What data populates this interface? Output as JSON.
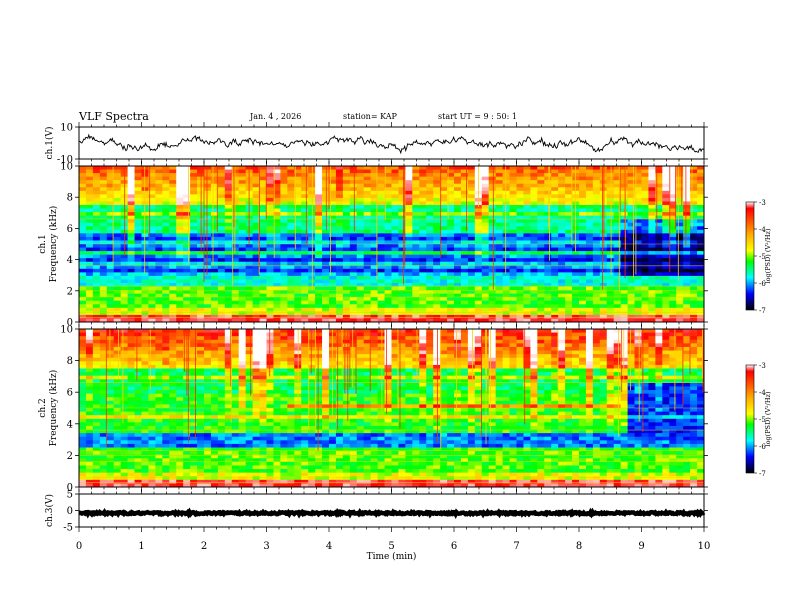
{
  "header": {
    "title": "VLF Spectra",
    "date": "Jan. 4 , 2026",
    "station": "station= KAP",
    "start_ut": "start  UT =  9 : 50: 1"
  },
  "chart_data": [
    {
      "type": "line",
      "name": "ch1-waveform",
      "ylabel": "ch.1(V)",
      "ylim": [
        -10,
        10
      ],
      "ytick_labels": [
        "10",
        "-10"
      ],
      "xlim": [
        0,
        10
      ],
      "mean_level": 0,
      "amplitude": 5,
      "points": 640
    },
    {
      "type": "heatmap",
      "name": "ch1-spectrogram",
      "ylabel": "ch.1 Frequency (kHz)",
      "ylim": [
        0,
        10
      ],
      "ytick_labels": [
        "0",
        "2",
        "4",
        "6",
        "8",
        "10"
      ],
      "xlim": [
        0,
        10
      ],
      "xlabel": "Time (min)",
      "colorbar": {
        "label": "log(PSD) (V²/Hz)",
        "range": [
          -7,
          -3
        ],
        "tick_labels": [
          "-3",
          "-4",
          "-5",
          "-6",
          "-7"
        ]
      }
    },
    {
      "type": "heatmap",
      "name": "ch2-spectrogram",
      "ylabel": "ch.2 Frequency (kHz)",
      "ylim": [
        0,
        10
      ],
      "ytick_labels": [
        "0",
        "2",
        "4",
        "6",
        "8",
        "10"
      ],
      "xlim": [
        0,
        10
      ],
      "xlabel": "Time (min)",
      "colorbar": {
        "label": "log(PSD) (V²/Hz)",
        "range": [
          -7,
          -3
        ],
        "tick_labels": [
          "-3",
          "-4",
          "-5",
          "-6",
          "-7"
        ]
      }
    },
    {
      "type": "line",
      "name": "ch3-waveform",
      "ylabel": "ch.3(V)",
      "ylim": [
        -5,
        5
      ],
      "ytick_labels": [
        "5",
        "0",
        "-5"
      ],
      "xlim": [
        0,
        10
      ],
      "mean_level": -0.8,
      "amplitude": 0.3,
      "points": 640
    }
  ],
  "x_axis": {
    "label": "Time (min)",
    "tick_labels": [
      "0",
      "1",
      "2",
      "3",
      "4",
      "5",
      "6",
      "7",
      "8",
      "9",
      "10"
    ]
  }
}
